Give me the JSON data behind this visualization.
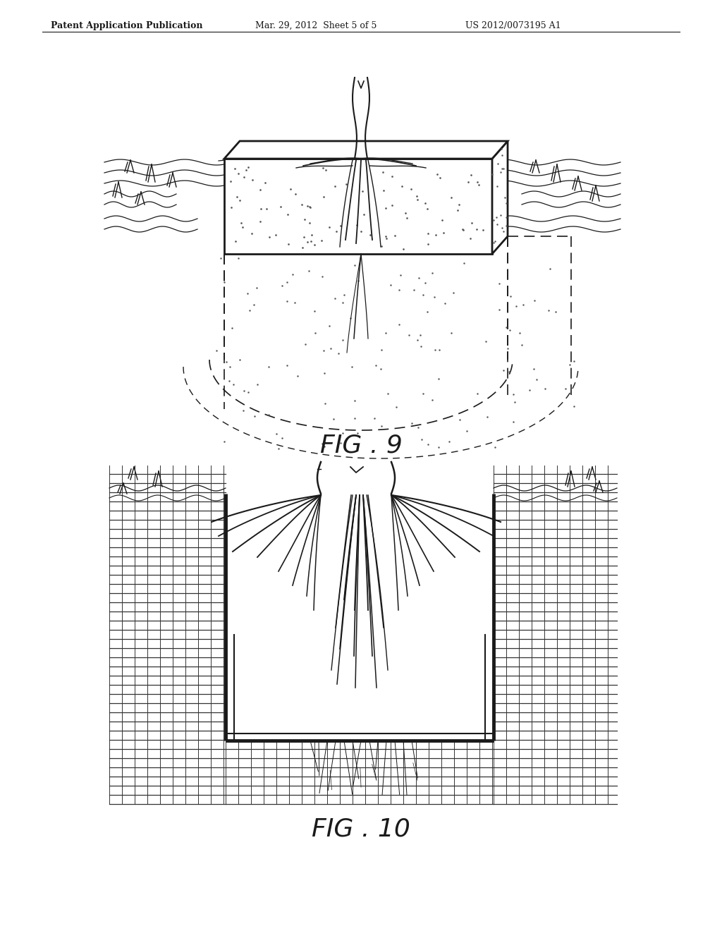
{
  "background_color": "#ffffff",
  "header_left": "Patent Application Publication",
  "header_mid": "Mar. 29, 2012  Sheet 5 of 5",
  "header_right": "US 2012/0073195 A1",
  "line_color": "#1a1a1a",
  "line_width": 1.5
}
